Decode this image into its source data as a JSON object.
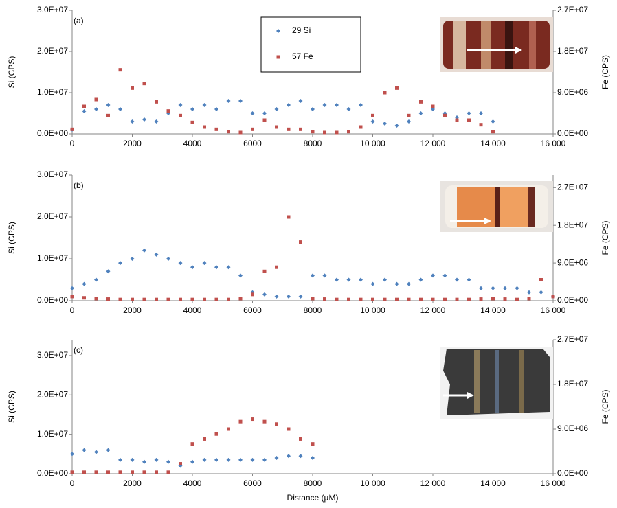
{
  "chart_data": [
    {
      "type": "scatter",
      "label": "(a)",
      "y_label": "Si (CPS)",
      "y2_label": "Fe (CPS)",
      "legend": "top-center",
      "xlim": [
        0,
        16000
      ],
      "xticks": [
        0,
        2000,
        4000,
        6000,
        8000,
        {
          "value": 10000,
          "label": "10 000"
        },
        {
          "value": 12000,
          "label": "12 000"
        },
        {
          "value": 14000,
          "label": "14 000"
        },
        {
          "value": 16000,
          "label": "16 000"
        }
      ],
      "ylim": [
        0,
        30000000
      ],
      "yticks": [
        {
          "value": 0,
          "label": "0.0E+00"
        },
        {
          "value": 10000000,
          "label": "1.0E+07"
        },
        {
          "value": 20000000,
          "label": "2.0E+07"
        },
        {
          "value": 30000000,
          "label": "3.0E+07"
        }
      ],
      "y2lim": [
        0,
        27000000
      ],
      "y2ticks": [
        {
          "value": 0,
          "label": "0.0E+00"
        },
        {
          "value": 9000000,
          "label": "9.0E+06"
        },
        {
          "value": 18000000,
          "label": "1.8E+07"
        },
        {
          "value": 27000000,
          "label": "2.7E+07"
        }
      ],
      "x": [
        0,
        400,
        800,
        1200,
        1600,
        2000,
        2400,
        2800,
        3200,
        3600,
        4000,
        4400,
        4800,
        5200,
        5600,
        6000,
        6400,
        6800,
        7200,
        7600,
        8000,
        8400,
        8800,
        9200,
        9600,
        10000,
        10400,
        10800,
        11200,
        11600,
        12000,
        12400,
        12800,
        13200,
        13600,
        14000
      ],
      "series": [
        {
          "name": "29 Si",
          "color": "#4f81bd",
          "marker": "diamond",
          "values": [
            1000000,
            5500000,
            6000000,
            7000000,
            6000000,
            3000000,
            3500000,
            3000000,
            5000000,
            7000000,
            6000000,
            7000000,
            6000000,
            8000000,
            8000000,
            5000000,
            5000000,
            6000000,
            7000000,
            8000000,
            6000000,
            7000000,
            7000000,
            6000000,
            7000000,
            3000000,
            2500000,
            2000000,
            3000000,
            5000000,
            6000000,
            5000000,
            4000000,
            5000000,
            5000000,
            3000000
          ]
        },
        {
          "name": "57 Fe",
          "color": "#c0504d",
          "marker": "square",
          "axis": "y2",
          "values": [
            1000000,
            6000000,
            7500000,
            4000000,
            14000000,
            10000000,
            11000000,
            7000000,
            5000000,
            4000000,
            2500000,
            1500000,
            1000000,
            500000,
            300000,
            1000000,
            3000000,
            1500000,
            1000000,
            1000000,
            500000,
            300000,
            300000,
            500000,
            1500000,
            4000000,
            9000000,
            10000000,
            4000000,
            7000000,
            6000000,
            4000000,
            3000000,
            3000000,
            2000000,
            500000
          ]
        }
      ]
    },
    {
      "type": "scatter",
      "label": "(b)",
      "y_label": "Si (CPS)",
      "y2_label": "Fe (CPS)",
      "xlim": [
        0,
        16000
      ],
      "xticks": [
        0,
        2000,
        4000,
        6000,
        8000,
        {
          "value": 10000,
          "label": "10 000"
        },
        {
          "value": 12000,
          "label": "12 000"
        },
        {
          "value": 14000,
          "label": "14 000"
        },
        {
          "value": 16000,
          "label": "16 000"
        }
      ],
      "ylim": [
        0,
        30000000
      ],
      "yticks": [
        {
          "value": 0,
          "label": "0.0E+00"
        },
        {
          "value": 10000000,
          "label": "1.0E+07"
        },
        {
          "value": 20000000,
          "label": "2.0E+07"
        },
        {
          "value": 30000000,
          "label": "3.0E+07"
        }
      ],
      "y2lim": [
        0,
        30000000
      ],
      "y2ticks": [
        {
          "value": 0,
          "label": "0.0E+00"
        },
        {
          "value": 9000000,
          "label": "9.0E+06"
        },
        {
          "value": 18000000,
          "label": "1.8E+07"
        },
        {
          "value": 27000000,
          "label": "2.7E+07"
        }
      ],
      "x": [
        0,
        400,
        800,
        1200,
        1600,
        2000,
        2400,
        2800,
        3200,
        3600,
        4000,
        4400,
        4800,
        5200,
        5600,
        6000,
        6400,
        6800,
        7200,
        7600,
        8000,
        8400,
        8800,
        9200,
        9600,
        10000,
        10400,
        10800,
        11200,
        11600,
        12000,
        12400,
        12800,
        13200,
        13600,
        14000,
        14400,
        14800,
        15200,
        15600,
        16000
      ],
      "series": [
        {
          "color": "#4f81bd",
          "marker": "diamond",
          "values": [
            3000000,
            4000000,
            5000000,
            7000000,
            9000000,
            10000000,
            12000000,
            11000000,
            10000000,
            9000000,
            8000000,
            9000000,
            8000000,
            8000000,
            6000000,
            2000000,
            1500000,
            1000000,
            1000000,
            1000000,
            6000000,
            6000000,
            5000000,
            5000000,
            5000000,
            4000000,
            5000000,
            4000000,
            4000000,
            5000000,
            6000000,
            6000000,
            5000000,
            5000000,
            3000000,
            3000000,
            3000000,
            3000000,
            2000000,
            2000000,
            1000000
          ]
        },
        {
          "color": "#c0504d",
          "marker": "square",
          "axis": "y2",
          "values": [
            1000000,
            700000,
            500000,
            400000,
            300000,
            300000,
            300000,
            300000,
            300000,
            300000,
            300000,
            300000,
            300000,
            300000,
            500000,
            1500000,
            7000000,
            8000000,
            20000000,
            14000000,
            500000,
            400000,
            300000,
            300000,
            300000,
            300000,
            300000,
            300000,
            300000,
            300000,
            300000,
            300000,
            300000,
            300000,
            400000,
            500000,
            400000,
            300000,
            500000,
            5000000,
            1000000
          ]
        }
      ]
    },
    {
      "type": "scatter",
      "label": "(c)",
      "y_label": "Si (CPS)",
      "y2_label": "Fe (CPS)",
      "x_label": "Distance (µM)",
      "xlim": [
        0,
        16000
      ],
      "xticks": [
        0,
        2000,
        4000,
        6000,
        8000,
        {
          "value": 10000,
          "label": "10 000"
        },
        {
          "value": 12000,
          "label": "12 000"
        },
        {
          "value": 14000,
          "label": "14 000"
        },
        {
          "value": 16000,
          "label": "16 000"
        }
      ],
      "ylim": [
        0,
        34000000
      ],
      "yticks": [
        {
          "value": 0,
          "label": "0.0E+00"
        },
        {
          "value": 10000000,
          "label": "1.0E+07"
        },
        {
          "value": 20000000,
          "label": "2.0E+07"
        },
        {
          "value": 30000000,
          "label": "3.0E+07"
        }
      ],
      "y2lim": [
        0,
        27000000
      ],
      "y2ticks": [
        {
          "value": 0,
          "label": "0.0E+00"
        },
        {
          "value": 9000000,
          "label": "9.0E+06"
        },
        {
          "value": 18000000,
          "label": "1.8E+07"
        },
        {
          "value": 27000000,
          "label": "2.7E+07"
        }
      ],
      "x": [
        0,
        400,
        800,
        1200,
        1600,
        2000,
        2400,
        2800,
        3200,
        3600,
        4000,
        4400,
        4800,
        5200,
        5600,
        6000,
        6400,
        6800,
        7200,
        7600,
        8000
      ],
      "series": [
        {
          "color": "#4f81bd",
          "marker": "diamond",
          "values": [
            5000000,
            6000000,
            5500000,
            6000000,
            3500000,
            3500000,
            3000000,
            3500000,
            3000000,
            2000000,
            3000000,
            3500000,
            3500000,
            3500000,
            3500000,
            3500000,
            3500000,
            4000000,
            4500000,
            4500000,
            4000000
          ]
        },
        {
          "color": "#c0504d",
          "marker": "square",
          "axis": "y2",
          "values": [
            300000,
            300000,
            300000,
            300000,
            300000,
            300000,
            300000,
            300000,
            300000,
            2000000,
            6000000,
            7000000,
            8000000,
            9000000,
            10500000,
            11000000,
            10500000,
            10000000,
            9000000,
            7000000,
            6000000
          ]
        }
      ]
    }
  ]
}
